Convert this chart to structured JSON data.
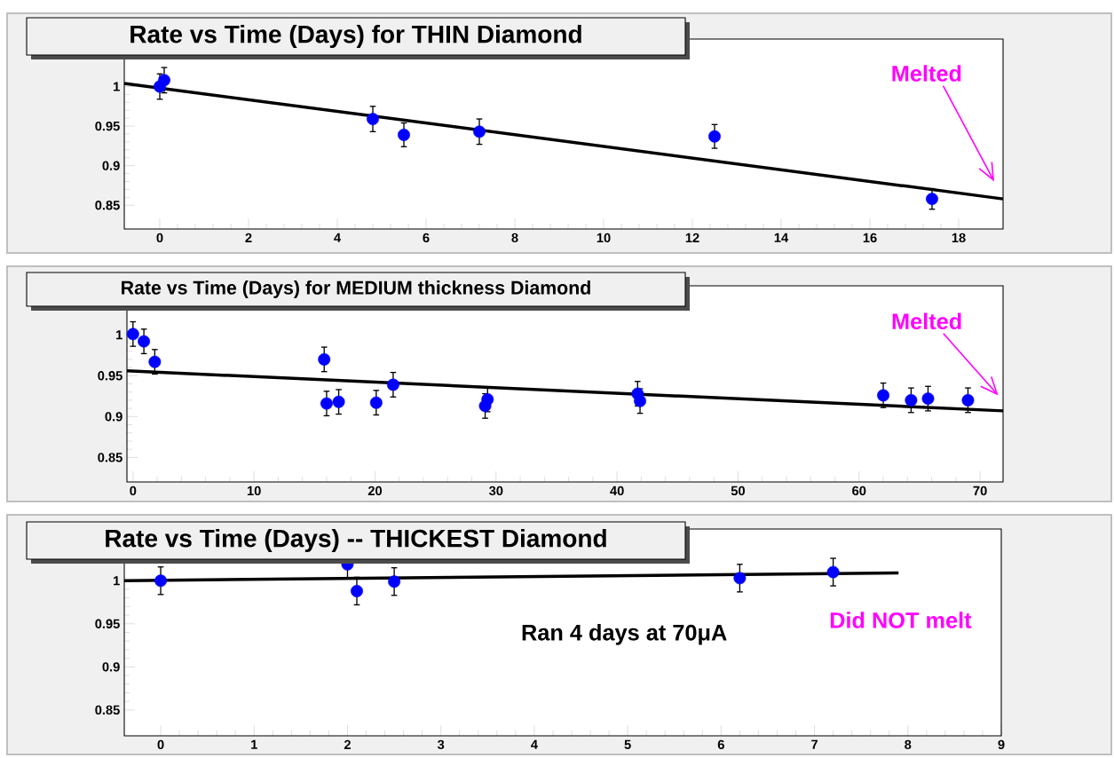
{
  "chart_data": [
    {
      "type": "scatter",
      "title": "Rate vs Time (Days) for THIN Diamond",
      "xlim": [
        -0.8,
        19
      ],
      "ylim": [
        0.82,
        1.06
      ],
      "xticks": [
        0,
        2,
        4,
        6,
        8,
        10,
        12,
        14,
        16,
        18
      ],
      "yticks": [
        0.85,
        0.9,
        0.95,
        1
      ],
      "annotations": [
        "Melted"
      ],
      "series": [
        {
          "type": "scatter",
          "marker": "circle",
          "color": "#0000ff",
          "x": [
            0,
            0.1,
            4.8,
            5.5,
            7.2,
            12.5,
            17.4
          ],
          "values": [
            1.0,
            1.008,
            0.959,
            0.939,
            0.943,
            0.937,
            0.858
          ],
          "errors": [
            0.016,
            0.016,
            0.016,
            0.015,
            0.016,
            0.015,
            0.013
          ]
        },
        {
          "type": "line",
          "color": "#000000",
          "x": [
            -0.8,
            19
          ],
          "values": [
            1.004,
            0.858
          ]
        }
      ]
    },
    {
      "type": "scatter",
      "title": "Rate  vs Time (Days) for MEDIUM thickness Diamond",
      "xlim": [
        -0.5,
        71.9
      ],
      "ylim": [
        0.82,
        1.06
      ],
      "xticks": [
        0,
        10,
        20,
        30,
        40,
        50,
        60,
        70
      ],
      "yticks": [
        0.85,
        0.9,
        0.95,
        1
      ],
      "annotations": [
        "Melted"
      ],
      "series": [
        {
          "type": "scatter",
          "marker": "circle",
          "color": "#0000ff",
          "x": [
            0,
            0.9,
            1.8,
            15.8,
            16,
            17,
            20.1,
            21.5,
            29.1,
            29.3,
            41.7,
            41.9,
            62,
            64.3,
            65.7,
            69
          ],
          "values": [
            1.001,
            0.992,
            0.967,
            0.97,
            0.916,
            0.918,
            0.917,
            0.939,
            0.913,
            0.921,
            0.928,
            0.919,
            0.926,
            0.92,
            0.922,
            0.92
          ],
          "errors": [
            0.015,
            0.015,
            0.015,
            0.015,
            0.015,
            0.015,
            0.015,
            0.015,
            0.015,
            0.015,
            0.015,
            0.015,
            0.015,
            0.015,
            0.015,
            0.015
          ]
        },
        {
          "type": "line",
          "color": "#000000",
          "x": [
            -0.5,
            71.9
          ],
          "values": [
            0.956,
            0.907
          ]
        }
      ]
    },
    {
      "type": "scatter",
      "title": "Rate vs Time (Days) -- THICKEST Diamond",
      "xlim": [
        -0.39,
        9
      ],
      "ylim": [
        0.82,
        1.06
      ],
      "xticks": [
        0,
        1,
        2,
        3,
        4,
        5,
        6,
        7,
        8,
        9
      ],
      "yticks": [
        0.85,
        0.9,
        0.95,
        1
      ],
      "annotations": [
        "Ran 4  days  at  70μA",
        "Did NOT melt"
      ],
      "series": [
        {
          "type": "scatter",
          "marker": "circle",
          "color": "#0000ff",
          "x": [
            0,
            2.0,
            2.1,
            2.5,
            6.2,
            7.2
          ],
          "values": [
            1.0,
            1.019,
            0.988,
            0.999,
            1.003,
            1.01
          ],
          "errors": [
            0.016,
            0.016,
            0.016,
            0.016,
            0.016,
            0.016
          ]
        },
        {
          "type": "line",
          "color": "#000000",
          "x": [
            -0.39,
            7.9
          ],
          "values": [
            1.0,
            1.009
          ]
        }
      ]
    }
  ]
}
